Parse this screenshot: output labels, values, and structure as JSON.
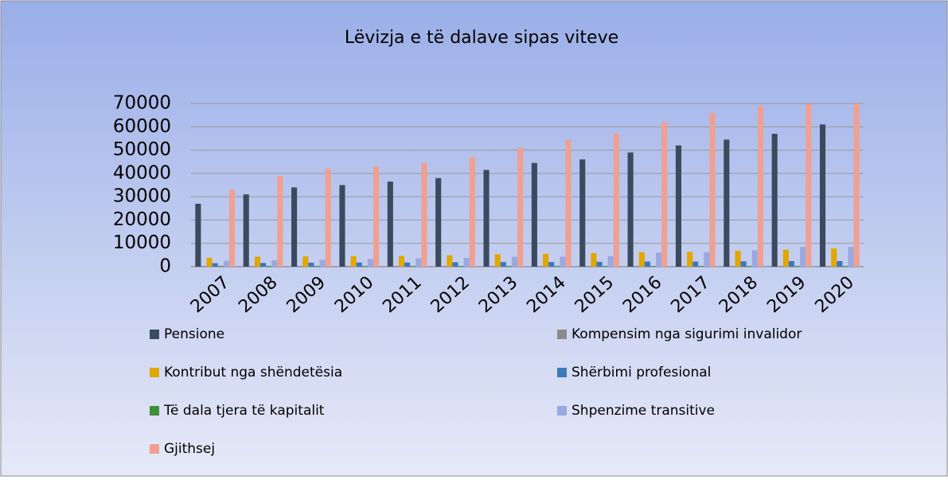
{
  "chart_data": {
    "type": "bar",
    "title": "Lëvizja e të dalave sipas viteve",
    "categories": [
      "2007",
      "2008",
      "2009",
      "2010",
      "2011",
      "2012",
      "2013",
      "2014",
      "2015",
      "2016",
      "2017",
      "2018",
      "2019",
      "2020"
    ],
    "series": [
      {
        "name": "Pensione",
        "color": "#3b4a5e",
        "values": [
          27000,
          31000,
          34000,
          35000,
          36500,
          38000,
          41500,
          44500,
          46000,
          49000,
          52000,
          54500,
          57000,
          61000
        ]
      },
      {
        "name": "Kompensim nga sigurimi invalidor",
        "color": "#8c8c8c",
        "values": [
          300,
          300,
          300,
          300,
          300,
          300,
          300,
          300,
          300,
          300,
          300,
          300,
          300,
          300
        ]
      },
      {
        "name": "Kontribut nga shëndetësia",
        "color": "#e0a800",
        "values": [
          3800,
          4300,
          4400,
          4500,
          4600,
          4900,
          5300,
          5500,
          5800,
          6200,
          6400,
          6800,
          7300,
          7800
        ]
      },
      {
        "name": "Shërbimi profesional",
        "color": "#3f78b8",
        "values": [
          1500,
          1600,
          1700,
          1800,
          1800,
          1900,
          2000,
          2000,
          2100,
          2200,
          2200,
          2300,
          2400,
          2400
        ]
      },
      {
        "name": "Të dala tjera të kapitalit",
        "color": "#3f8f3a",
        "values": [
          300,
          300,
          300,
          300,
          300,
          300,
          300,
          300,
          300,
          300,
          300,
          300,
          300,
          300
        ]
      },
      {
        "name": "Shpenzime transitive",
        "color": "#9aa8e0",
        "values": [
          2500,
          2700,
          3000,
          3300,
          3600,
          3800,
          4200,
          4300,
          4500,
          6000,
          6200,
          7000,
          8500,
          8500
        ]
      },
      {
        "name": "Gjithsej",
        "color": "#f0a090",
        "values": [
          33000,
          39000,
          42000,
          43000,
          44500,
          47000,
          51000,
          54500,
          57000,
          62000,
          66000,
          69000,
          69800,
          70000
        ]
      }
    ],
    "ylim": [
      0,
      70000
    ],
    "yticks": [
      0,
      10000,
      20000,
      30000,
      40000,
      50000,
      60000,
      70000
    ],
    "grid": true
  }
}
